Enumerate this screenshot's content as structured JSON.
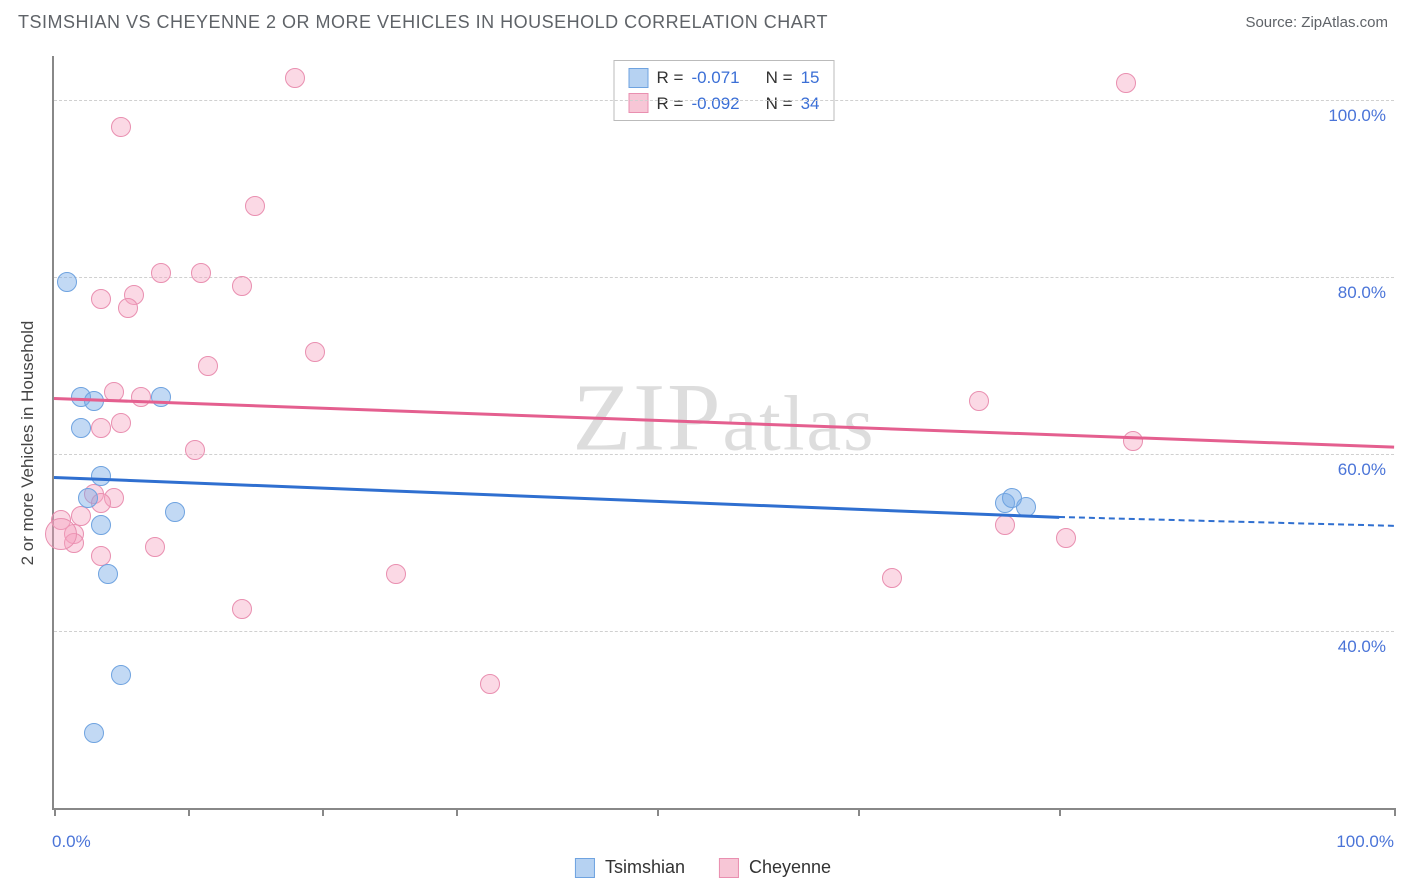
{
  "header": {
    "title": "TSIMSHIAN VS CHEYENNE 2 OR MORE VEHICLES IN HOUSEHOLD CORRELATION CHART",
    "source": "Source: ZipAtlas.com"
  },
  "chart": {
    "type": "scatter",
    "y_axis_label": "2 or more Vehicles in Household",
    "watermark": "ZIPatlas",
    "background_color": "#ffffff",
    "grid_color": "#d0d0d0",
    "axis_color": "#888888",
    "xlim": [
      0,
      100
    ],
    "ylim": [
      20,
      105
    ],
    "x_ticks": [
      0,
      10,
      20,
      30,
      45,
      60,
      75,
      100
    ],
    "x_tick_labels": {
      "0": "0.0%",
      "100": "100.0%"
    },
    "y_gridlines": [
      40,
      60,
      80,
      100
    ],
    "y_tick_labels": {
      "40": "40.0%",
      "60": "60.0%",
      "80": "80.0%",
      "100": "100.0%"
    },
    "y_tick_color": "#4a74d8",
    "x_tick_color": "#4a74d8",
    "label_fontsize": 17,
    "title_fontsize": 18,
    "marker_radius": 10,
    "marker_border_width": 1.5,
    "series": {
      "tsimshian": {
        "label": "Tsimshian",
        "fill": "rgba(120,170,230,0.45)",
        "stroke": "#6fa3e0",
        "swatch_fill": "#b6d2f2",
        "swatch_border": "#6fa3e0",
        "points": [
          [
            1.0,
            79.5
          ],
          [
            2.0,
            66.5
          ],
          [
            3.0,
            66.0
          ],
          [
            2.0,
            63.0
          ],
          [
            3.5,
            57.5
          ],
          [
            4.0,
            46.5
          ],
          [
            9.0,
            53.5
          ],
          [
            5.0,
            35.0
          ],
          [
            3.0,
            28.5
          ],
          [
            71.0,
            54.5
          ],
          [
            72.5,
            54.0
          ],
          [
            71.5,
            55.0
          ],
          [
            3.5,
            52.0
          ],
          [
            2.5,
            55.0
          ],
          [
            8.0,
            66.5
          ]
        ],
        "trend": {
          "x1": 0,
          "y1": 57.5,
          "x2": 75,
          "y2": 53.0,
          "color": "#2f6fd0",
          "dash_to_x": 100,
          "dash_y": 52.0
        },
        "R": "-0.071",
        "N": "15"
      },
      "cheyenne": {
        "label": "Cheyenne",
        "fill": "rgba(245,160,190,0.40)",
        "stroke": "#e98fb0",
        "swatch_fill": "#f7c6d6",
        "swatch_border": "#e98fb0",
        "points": [
          [
            18.0,
            102.5
          ],
          [
            5.0,
            97.0
          ],
          [
            15.0,
            88.0
          ],
          [
            8.0,
            80.5
          ],
          [
            11.0,
            80.5
          ],
          [
            14.0,
            79.0
          ],
          [
            3.5,
            77.5
          ],
          [
            6.0,
            78.0
          ],
          [
            5.5,
            76.5
          ],
          [
            19.5,
            71.5
          ],
          [
            11.5,
            70.0
          ],
          [
            4.5,
            67.0
          ],
          [
            6.5,
            66.5
          ],
          [
            5.0,
            63.5
          ],
          [
            3.5,
            63.0
          ],
          [
            10.5,
            60.5
          ],
          [
            3.0,
            55.5
          ],
          [
            4.5,
            55.0
          ],
          [
            3.5,
            54.5
          ],
          [
            2.0,
            53.0
          ],
          [
            0.5,
            52.5
          ],
          [
            1.5,
            51.0
          ],
          [
            7.5,
            49.5
          ],
          [
            3.5,
            48.5
          ],
          [
            14.0,
            42.5
          ],
          [
            25.5,
            46.5
          ],
          [
            32.5,
            34.0
          ],
          [
            62.5,
            46.0
          ],
          [
            69.0,
            66.0
          ],
          [
            75.5,
            50.5
          ],
          [
            80.0,
            102.0
          ],
          [
            80.5,
            61.5
          ],
          [
            71.0,
            52.0
          ],
          [
            1.5,
            50.0
          ]
        ],
        "large_point": {
          "x": 0.5,
          "y": 51.0,
          "r": 16
        },
        "trend": {
          "x1": 0,
          "y1": 66.5,
          "x2": 100,
          "y2": 61.0,
          "color": "#e45f8f"
        },
        "R": "-0.092",
        "N": "34"
      }
    },
    "stat_box": {
      "r_label": "R =",
      "n_label": "N ="
    },
    "legend": {
      "items": [
        "tsimshian",
        "cheyenne"
      ]
    }
  }
}
